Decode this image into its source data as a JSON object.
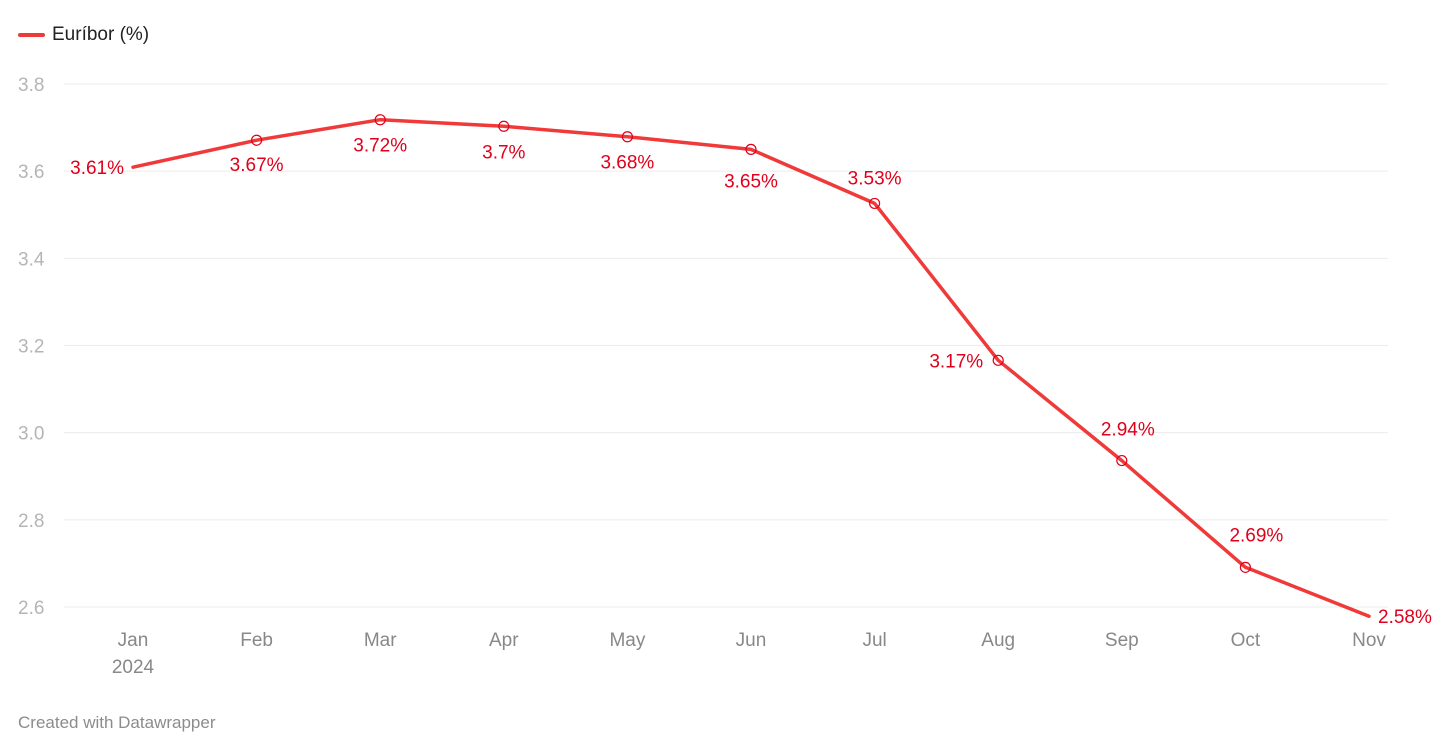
{
  "chart_data": {
    "type": "line",
    "categories": [
      "Jan",
      "Feb",
      "Mar",
      "Apr",
      "May",
      "Jun",
      "Jul",
      "Aug",
      "Sep",
      "Oct",
      "Nov"
    ],
    "year_label": "2024",
    "series": [
      {
        "name": "Euríbor (%)",
        "values": [
          3.609,
          3.671,
          3.718,
          3.703,
          3.679,
          3.65,
          3.526,
          3.166,
          2.936,
          2.691,
          2.579
        ],
        "labels": [
          "3.61%",
          "3.67%",
          "3.72%",
          "3.7%",
          "3.68%",
          "3.65%",
          "3.53%",
          "3.17%",
          "2.94%",
          "2.69%",
          "2.58%"
        ]
      }
    ],
    "ylim": [
      2.6,
      3.8
    ],
    "yticks": [
      "2.6",
      "2.8",
      "3.0",
      "3.2",
      "3.4",
      "3.6",
      "3.8"
    ],
    "grid": true,
    "legend_position": "top-left",
    "color": "#f03a3a",
    "label_color": "#e0001b"
  },
  "footer": {
    "credit": "Created with Datawrapper"
  }
}
